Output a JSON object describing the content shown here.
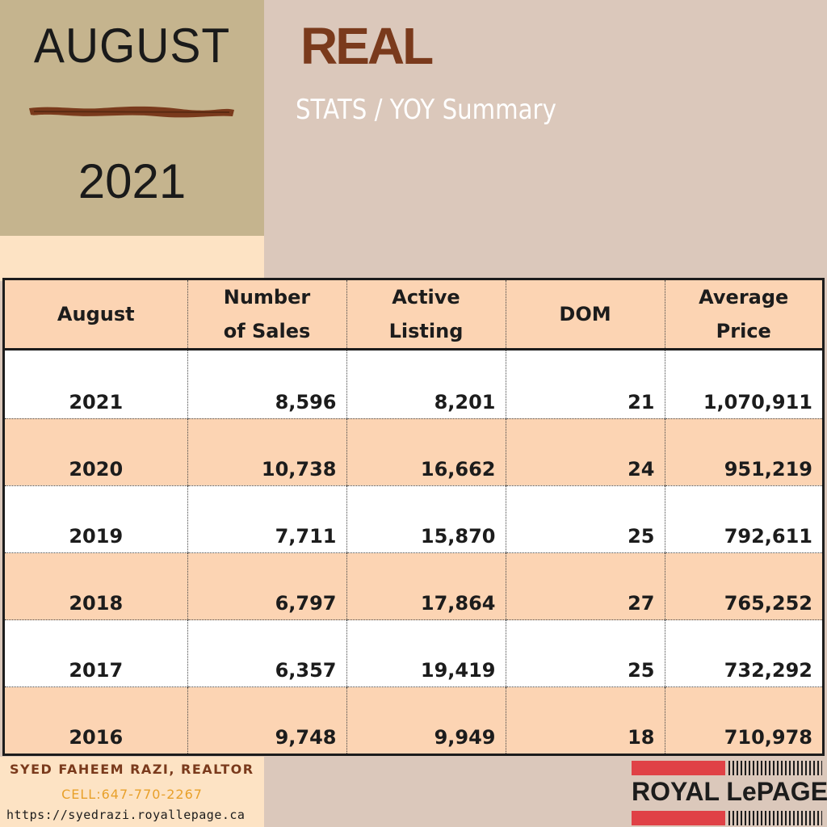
{
  "header": {
    "month": "AUGUST",
    "year": "2021",
    "brand": "REAL",
    "subtitle": "STATS / YOY Summary"
  },
  "table": {
    "columns": [
      "August",
      "Number of Sales",
      "Active Listing",
      "DOM",
      "Average Price"
    ],
    "columns_lines": [
      [
        "August"
      ],
      [
        "Number",
        "of Sales"
      ],
      [
        "Active",
        "Listing"
      ],
      [
        "DOM"
      ],
      [
        "Average",
        "Price"
      ]
    ],
    "rows": [
      [
        "2021",
        "8,596",
        "8,201",
        "21",
        "1,070,911"
      ],
      [
        "2020",
        "10,738",
        "16,662",
        "24",
        "951,219"
      ],
      [
        "2019",
        "7,711",
        "15,870",
        "25",
        "792,611"
      ],
      [
        "2018",
        "6,797",
        "17,864",
        "27",
        "765,252"
      ],
      [
        "2017",
        "6,357",
        "19,419",
        "25",
        "732,292"
      ],
      [
        "2016",
        "9,748",
        "9,949",
        "18",
        "710,978"
      ]
    ]
  },
  "footer": {
    "realtor": "SYED FAHEEM RAZI, REALTOR",
    "cell": "CELL:647-770-2267",
    "website": "https://syedrazi.royallepage.ca",
    "logo_text": "ROYAL LePAGE"
  },
  "colors": {
    "background": "#dbc8bb",
    "left_block": "#c5b48e",
    "peach": "#fcd4b3",
    "brand_brown": "#7a3a1c",
    "logo_red": "#e04146",
    "cell_orange": "#e8a02a"
  }
}
